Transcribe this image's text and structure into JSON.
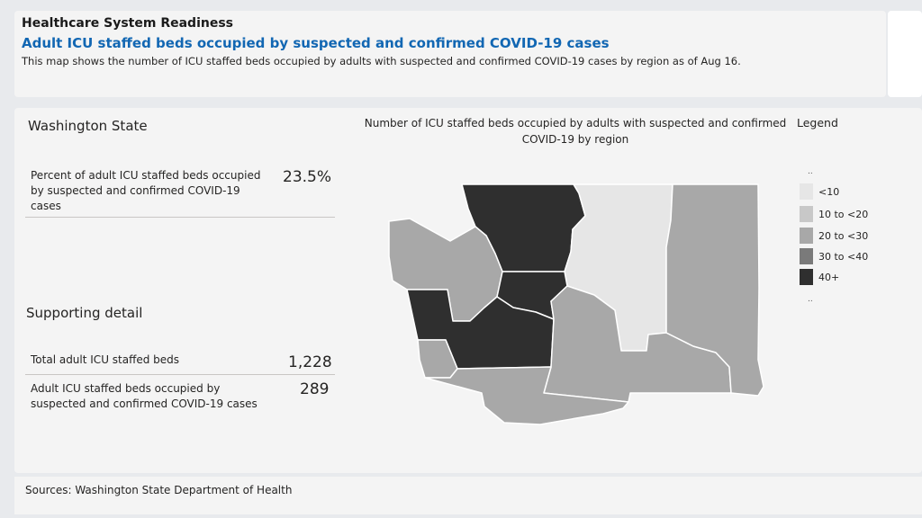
{
  "header": {
    "title": "Healthcare System Readiness",
    "subtitle": "Adult ICU staffed beds occupied by suspected and confirmed COVID-19 cases",
    "description": "This map shows the number of ICU staffed beds occupied by adults with suspected and confirmed COVID-19 cases by region as of Aug 16."
  },
  "summary": {
    "region_title": "Washington State",
    "kpi_label": "Percent of adult ICU staffed beds occupied by suspected and confirmed COVID-19 cases",
    "kpi_value": "23.5%"
  },
  "supporting": {
    "title": "Supporting detail",
    "rows": [
      {
        "label": "Total adult ICU staffed beds",
        "value": "1,228"
      },
      {
        "label": "Adult ICU staffed beds occupied by suspected and confirmed COVID-19 cases",
        "value": "289"
      }
    ]
  },
  "map": {
    "title": "Number of ICU staffed beds occupied by adults with suspected and confirmed COVID-19 by region"
  },
  "legend": {
    "title": "Legend",
    "top_dots": "..",
    "bottom_dots": "..",
    "items": [
      {
        "label": "<10",
        "color": "#e6e6e6"
      },
      {
        "label": "10 to <20",
        "color": "#c8c8c8"
      },
      {
        "label": "20 to <30",
        "color": "#a8a8a8"
      },
      {
        "label": "30 to <40",
        "color": "#7a7a7a"
      },
      {
        "label": "40+",
        "color": "#2f2f2f"
      }
    ]
  },
  "footer": {
    "sources": "Sources: Washington State Department of Health"
  }
}
